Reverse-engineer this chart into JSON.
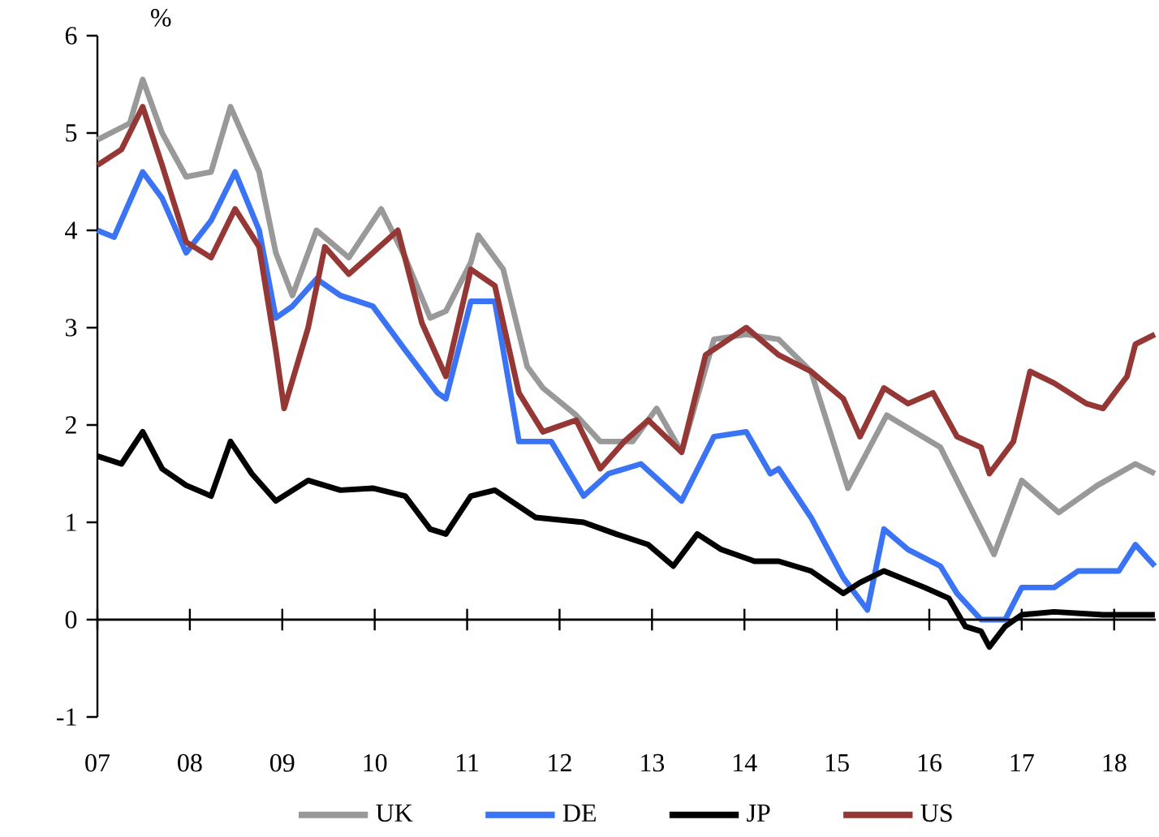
{
  "chart_data": {
    "type": "line",
    "ylabel": "%",
    "xlim": [
      2007,
      2018.45
    ],
    "ylim": [
      -1,
      6
    ],
    "xticks": [
      {
        "value": 2007,
        "label": "07"
      },
      {
        "value": 2008,
        "label": "08"
      },
      {
        "value": 2009,
        "label": "09"
      },
      {
        "value": 2010,
        "label": "10"
      },
      {
        "value": 2011,
        "label": "11"
      },
      {
        "value": 2012,
        "label": "12"
      },
      {
        "value": 2013,
        "label": "13"
      },
      {
        "value": 2014,
        "label": "14"
      },
      {
        "value": 2015,
        "label": "15"
      },
      {
        "value": 2016,
        "label": "16"
      },
      {
        "value": 2017,
        "label": "17"
      },
      {
        "value": 2018,
        "label": "18"
      }
    ],
    "yticks": [
      -1,
      0,
      1,
      2,
      3,
      4,
      5,
      6
    ],
    "legend": "bottom",
    "marker": "none",
    "line_style": "solid",
    "series": [
      {
        "name": "UK",
        "color": "#999999",
        "x": [
          2007.0,
          2007.35,
          2007.49,
          2007.7,
          2007.96,
          2008.23,
          2008.44,
          2008.75,
          2008.93,
          2009.11,
          2009.37,
          2009.72,
          2010.07,
          2010.33,
          2010.6,
          2010.77,
          2011.04,
          2011.12,
          2011.39,
          2011.65,
          2011.82,
          2012.18,
          2012.44,
          2012.79,
          2013.05,
          2013.32,
          2013.67,
          2014.02,
          2014.37,
          2014.72,
          2015.12,
          2015.54,
          2016.12,
          2016.7,
          2017.0,
          2017.4,
          2017.82,
          2018.23,
          2018.44
        ],
        "values": [
          4.93,
          5.1,
          5.55,
          5.0,
          4.55,
          4.6,
          5.27,
          4.6,
          3.77,
          3.33,
          4.0,
          3.72,
          4.22,
          3.72,
          3.1,
          3.17,
          3.67,
          3.95,
          3.6,
          2.6,
          2.38,
          2.1,
          1.83,
          1.83,
          2.17,
          1.72,
          2.88,
          2.93,
          2.88,
          2.55,
          1.35,
          2.1,
          1.77,
          0.67,
          1.43,
          1.1,
          1.38,
          1.6,
          1.5
        ]
      },
      {
        "name": "DE",
        "color": "#3a74f5",
        "x": [
          2007.0,
          2007.18,
          2007.49,
          2007.7,
          2007.96,
          2008.23,
          2008.49,
          2008.75,
          2008.93,
          2009.11,
          2009.37,
          2009.63,
          2009.98,
          2010.33,
          2010.68,
          2010.77,
          2011.04,
          2011.3,
          2011.56,
          2011.91,
          2012.26,
          2012.53,
          2012.88,
          2013.32,
          2013.67,
          2014.02,
          2014.28,
          2014.37,
          2014.72,
          2015.07,
          2015.33,
          2015.51,
          2015.77,
          2016.12,
          2016.3,
          2016.56,
          2016.82,
          2017.0,
          2017.35,
          2017.61,
          2018.05,
          2018.23,
          2018.44
        ],
        "values": [
          4.0,
          3.93,
          4.6,
          4.33,
          3.77,
          4.1,
          4.6,
          4.0,
          3.1,
          3.22,
          3.5,
          3.33,
          3.22,
          2.77,
          2.33,
          2.27,
          3.27,
          3.27,
          1.83,
          1.83,
          1.27,
          1.5,
          1.6,
          1.22,
          1.88,
          1.93,
          1.5,
          1.55,
          1.05,
          0.43,
          0.1,
          0.93,
          0.72,
          0.55,
          0.27,
          0.0,
          0.0,
          0.33,
          0.33,
          0.5,
          0.5,
          0.77,
          0.55
        ]
      },
      {
        "name": "JP",
        "color": "#000000",
        "x": [
          2007.0,
          2007.26,
          2007.49,
          2007.7,
          2007.96,
          2008.23,
          2008.44,
          2008.67,
          2008.93,
          2009.28,
          2009.63,
          2009.98,
          2010.33,
          2010.6,
          2010.77,
          2011.04,
          2011.3,
          2011.74,
          2012.26,
          2012.61,
          2012.96,
          2013.23,
          2013.49,
          2013.75,
          2014.11,
          2014.37,
          2014.72,
          2015.07,
          2015.25,
          2015.51,
          2015.95,
          2016.21,
          2016.39,
          2016.56,
          2016.65,
          2016.82,
          2017.0,
          2017.35,
          2017.88,
          2018.44
        ],
        "values": [
          1.68,
          1.6,
          1.93,
          1.55,
          1.38,
          1.27,
          1.83,
          1.5,
          1.22,
          1.43,
          1.33,
          1.35,
          1.27,
          0.93,
          0.88,
          1.27,
          1.33,
          1.05,
          1.0,
          0.88,
          0.77,
          0.55,
          0.88,
          0.72,
          0.6,
          0.6,
          0.5,
          0.27,
          0.38,
          0.5,
          0.33,
          0.22,
          -0.07,
          -0.12,
          -0.28,
          -0.07,
          0.05,
          0.08,
          0.05,
          0.05
        ]
      },
      {
        "name": "US",
        "color": "#953735",
        "x": [
          2007.0,
          2007.26,
          2007.49,
          2007.7,
          2007.96,
          2008.23,
          2008.49,
          2008.75,
          2008.93,
          2009.02,
          2009.28,
          2009.46,
          2009.72,
          2009.98,
          2010.25,
          2010.51,
          2010.77,
          2011.04,
          2011.3,
          2011.56,
          2011.82,
          2012.18,
          2012.44,
          2012.7,
          2012.96,
          2013.32,
          2013.58,
          2014.02,
          2014.37,
          2014.72,
          2015.07,
          2015.25,
          2015.51,
          2015.77,
          2016.04,
          2016.3,
          2016.56,
          2016.65,
          2016.91,
          2017.09,
          2017.35,
          2017.7,
          2017.88,
          2018.14,
          2018.23,
          2018.44
        ],
        "values": [
          4.67,
          4.83,
          5.27,
          4.67,
          3.88,
          3.72,
          4.22,
          3.83,
          2.77,
          2.17,
          3.0,
          3.83,
          3.55,
          3.77,
          4.0,
          3.05,
          2.5,
          3.6,
          3.43,
          2.33,
          1.93,
          2.05,
          1.55,
          1.83,
          2.05,
          1.72,
          2.72,
          3.0,
          2.72,
          2.55,
          2.27,
          1.88,
          2.38,
          2.22,
          2.33,
          1.88,
          1.77,
          1.5,
          1.83,
          2.55,
          2.43,
          2.22,
          2.17,
          2.5,
          2.83,
          2.93
        ]
      }
    ]
  }
}
